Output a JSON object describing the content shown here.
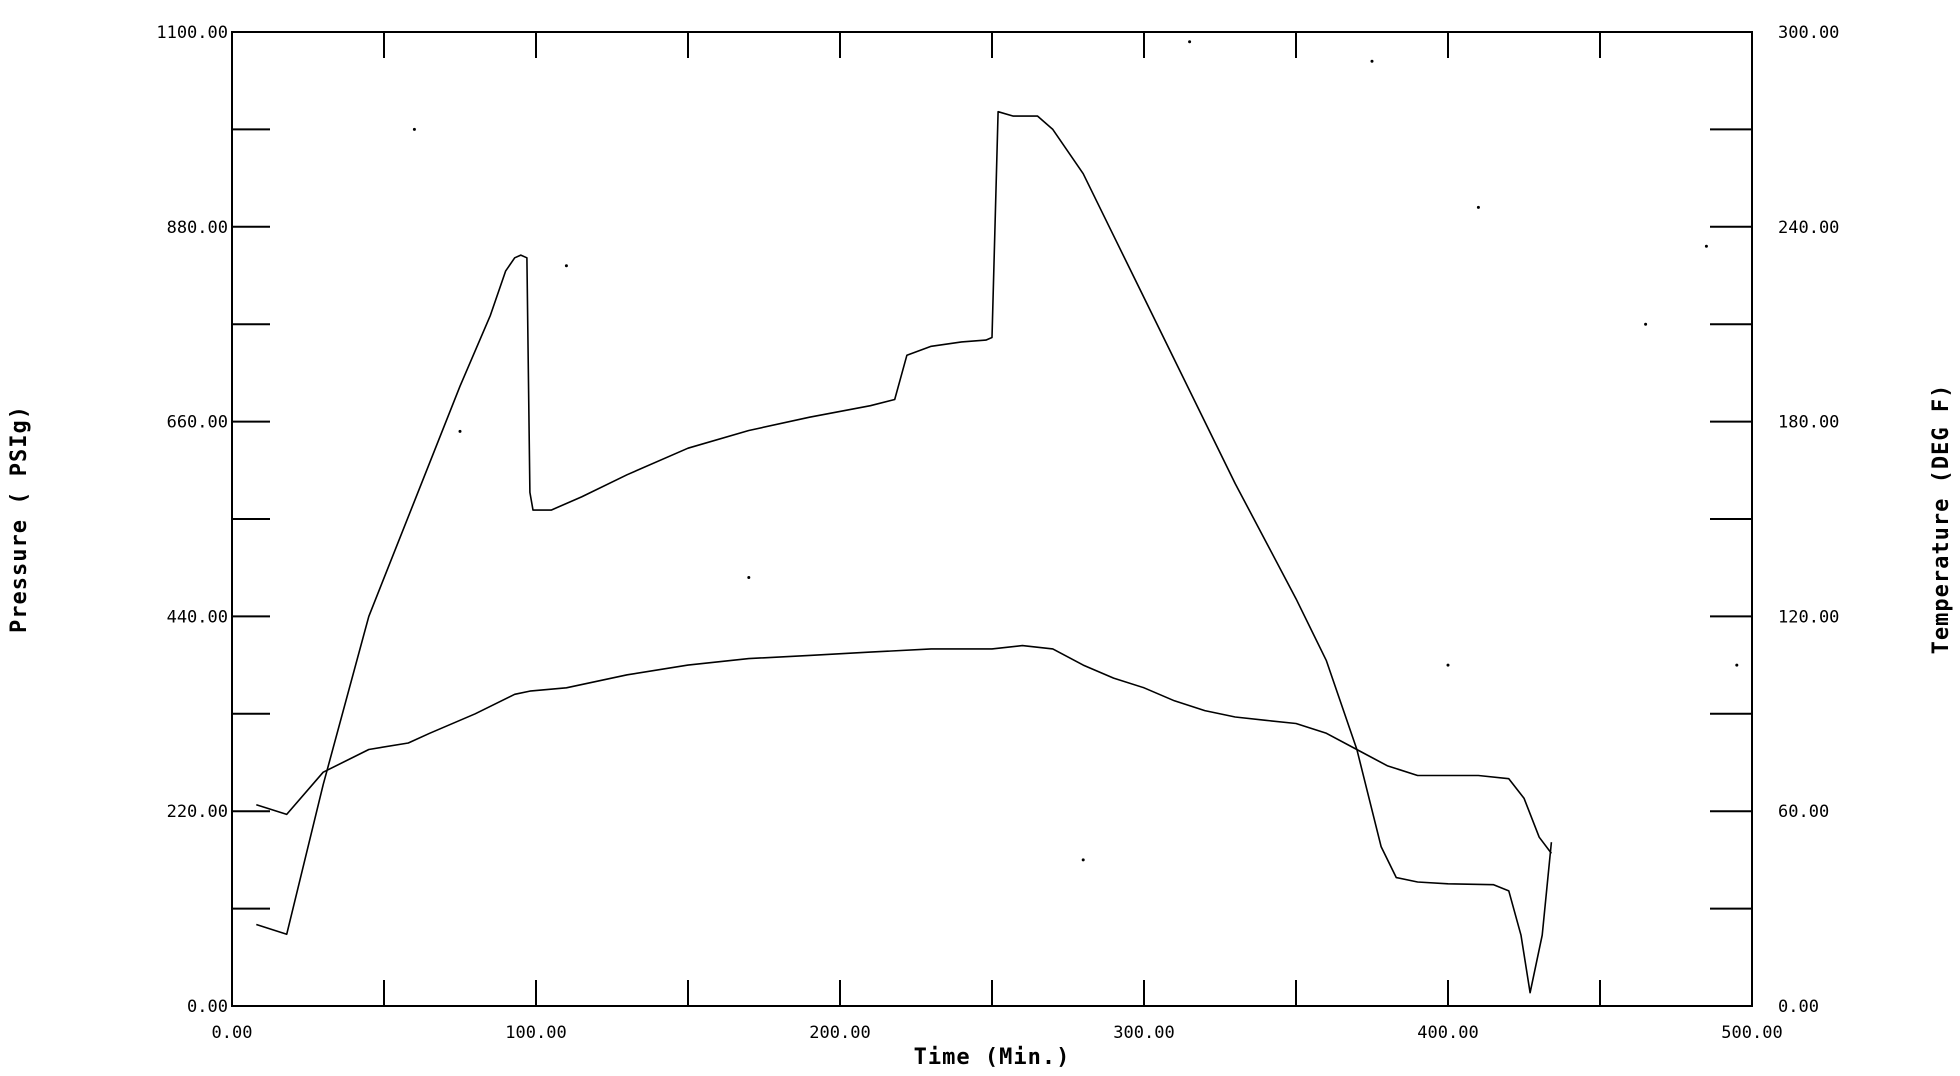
{
  "chart_data": {
    "type": "line",
    "x_axis": {
      "label": "Time (Min.)",
      "range": [
        0,
        500
      ],
      "tick_labels": [
        "0.00",
        "100.00",
        "200.00",
        "300.00",
        "400.00",
        "500.00"
      ]
    },
    "y_axis_left": {
      "label": "Pressure ( PSIg)",
      "range": [
        0,
        1100
      ],
      "tick_labels": [
        "0.00",
        "220.00",
        "440.00",
        "660.00",
        "880.00",
        "1100.00"
      ]
    },
    "y_axis_right": {
      "label": "Temperature (DEG F)",
      "range": [
        0,
        300
      ],
      "tick_labels": [
        "0.00",
        "60.00",
        "120.00",
        "180.00",
        "240.00",
        "300.00"
      ]
    },
    "grid": false,
    "legend": "none",
    "series": [
      {
        "axis": "left",
        "points": [
          [
            8,
            92
          ],
          [
            18,
            81
          ],
          [
            30,
            250
          ],
          [
            45,
            440
          ],
          [
            60,
            570
          ],
          [
            75,
            700
          ],
          [
            85,
            780
          ],
          [
            90,
            830
          ],
          [
            93,
            845
          ],
          [
            95,
            848
          ],
          [
            97,
            845
          ],
          [
            98,
            580
          ],
          [
            99,
            560
          ],
          [
            105,
            560
          ],
          [
            115,
            575
          ],
          [
            130,
            600
          ],
          [
            150,
            630
          ],
          [
            170,
            650
          ],
          [
            190,
            665
          ],
          [
            210,
            678
          ],
          [
            218,
            685
          ],
          [
            222,
            735
          ],
          [
            230,
            745
          ],
          [
            240,
            750
          ],
          [
            248,
            752
          ],
          [
            250,
            755
          ],
          [
            252,
            1010
          ],
          [
            257,
            1005
          ],
          [
            265,
            1005
          ],
          [
            270,
            990
          ],
          [
            280,
            940
          ],
          [
            290,
            870
          ],
          [
            300,
            800
          ],
          [
            310,
            730
          ],
          [
            320,
            660
          ],
          [
            330,
            590
          ],
          [
            340,
            525
          ],
          [
            350,
            460
          ],
          [
            360,
            390
          ],
          [
            370,
            290
          ],
          [
            378,
            180
          ],
          [
            383,
            145
          ],
          [
            390,
            140
          ],
          [
            400,
            138
          ],
          [
            415,
            137
          ],
          [
            420,
            130
          ],
          [
            424,
            80
          ],
          [
            427,
            15
          ],
          [
            431,
            80
          ],
          [
            434,
            185
          ]
        ]
      },
      {
        "axis": "right",
        "points": [
          [
            8,
            62
          ],
          [
            18,
            59
          ],
          [
            30,
            72
          ],
          [
            45,
            79
          ],
          [
            58,
            81
          ],
          [
            65,
            84
          ],
          [
            80,
            90
          ],
          [
            93,
            96
          ],
          [
            98,
            97
          ],
          [
            110,
            98
          ],
          [
            130,
            102
          ],
          [
            150,
            105
          ],
          [
            170,
            107
          ],
          [
            190,
            108
          ],
          [
            210,
            109
          ],
          [
            230,
            110
          ],
          [
            250,
            110
          ],
          [
            260,
            111
          ],
          [
            270,
            110
          ],
          [
            280,
            105
          ],
          [
            290,
            101
          ],
          [
            300,
            98
          ],
          [
            310,
            94
          ],
          [
            320,
            91
          ],
          [
            330,
            89
          ],
          [
            340,
            88
          ],
          [
            350,
            87
          ],
          [
            360,
            84
          ],
          [
            370,
            79
          ],
          [
            380,
            74
          ],
          [
            390,
            71
          ],
          [
            400,
            71
          ],
          [
            410,
            71
          ],
          [
            420,
            70
          ],
          [
            425,
            64
          ],
          [
            430,
            52
          ],
          [
            434,
            47
          ]
        ]
      }
    ]
  }
}
